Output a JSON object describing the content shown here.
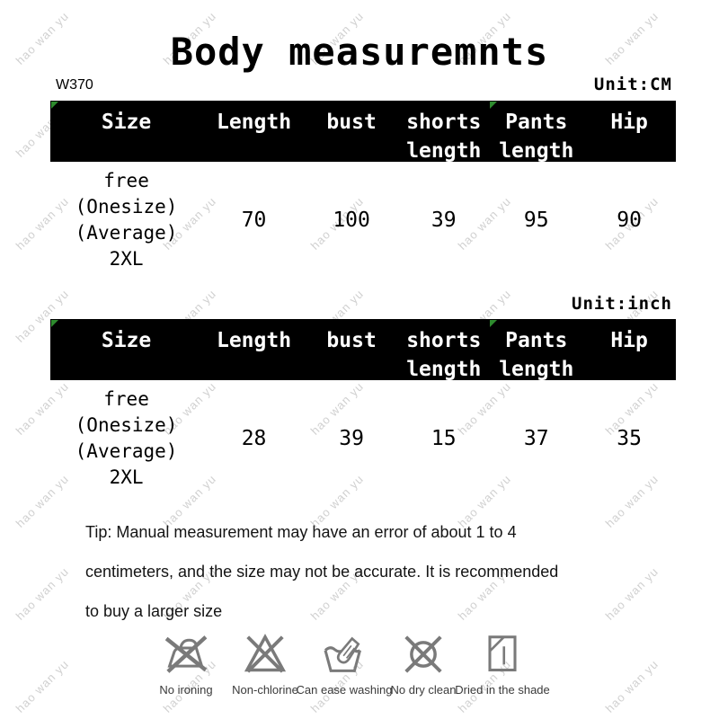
{
  "page": {
    "title": "Body measuremnts",
    "sku": "W370"
  },
  "watermark": {
    "text": "hao wan yu"
  },
  "tables": [
    {
      "unit_label": "Unit:CM",
      "headers": [
        [
          "Size",
          ""
        ],
        [
          "Length",
          ""
        ],
        [
          "bust",
          ""
        ],
        [
          "shorts",
          "length"
        ],
        [
          "Pants",
          "length"
        ],
        [
          "Hip",
          ""
        ]
      ],
      "row": {
        "size_lines": [
          "free",
          "(Onesize)",
          "(Average)",
          "2XL"
        ],
        "values": [
          "70",
          "100",
          "39",
          "95",
          "90"
        ]
      }
    },
    {
      "unit_label": "Unit:inch",
      "headers": [
        [
          "Size",
          ""
        ],
        [
          "Length",
          ""
        ],
        [
          "bust",
          ""
        ],
        [
          "shorts",
          "length"
        ],
        [
          "Pants",
          "length"
        ],
        [
          "Hip",
          ""
        ]
      ],
      "row": {
        "size_lines": [
          "free",
          "(Onesize)",
          "(Average)",
          "2XL"
        ],
        "values": [
          "28",
          "39",
          "15",
          "37",
          "35"
        ]
      }
    }
  ],
  "tip": {
    "lines": [
      "Tip: Manual measurement may have an error of about 1 to 4",
      "centimeters, and the size may not be accurate. It is recommended",
      "to buy a larger size"
    ]
  },
  "care_icons": [
    {
      "name": "no-ironing",
      "label": "No ironing"
    },
    {
      "name": "non-chlorine",
      "label": "Non-chlorine"
    },
    {
      "name": "hand-wash",
      "label": "Can ease washing"
    },
    {
      "name": "no-dry-clean",
      "label": "No dry clean"
    },
    {
      "name": "dry-in-shade",
      "label": "Dried in the shade"
    }
  ],
  "colors": {
    "header_bg": "#000000",
    "header_text": "#ffffff",
    "watermark": "#c5c5c5",
    "icon_gray": "#7a7a7a",
    "marker_green": "#2e8b2e"
  }
}
